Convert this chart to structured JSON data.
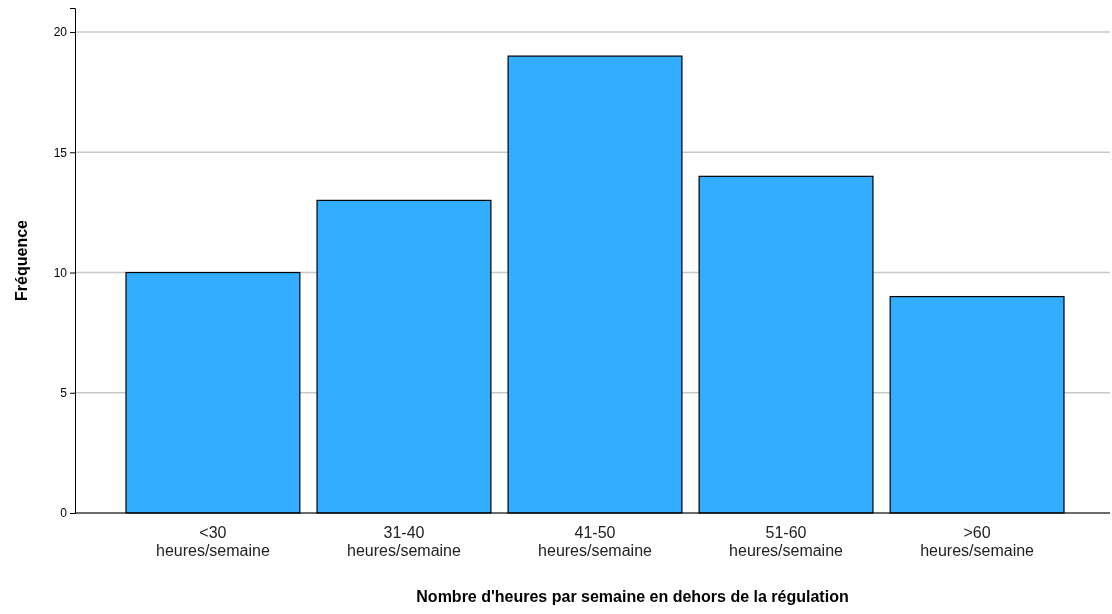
{
  "chart_data": {
    "type": "bar",
    "xlabel": "Nombre d'heures par semaine en dehors de la régulation",
    "ylabel": "Fréquence",
    "categories": [
      "<30 heures/semaine",
      "31-40 heures/semaine",
      "41-50 heures/semaine",
      "51-60 heures/semaine",
      ">60 heures/semaine"
    ],
    "values": [
      10,
      13,
      19,
      14,
      9
    ],
    "color": "#33adff",
    "ylim": [
      0,
      21
    ],
    "yticks": [
      0,
      5,
      10,
      15,
      20
    ],
    "grid": "y"
  }
}
